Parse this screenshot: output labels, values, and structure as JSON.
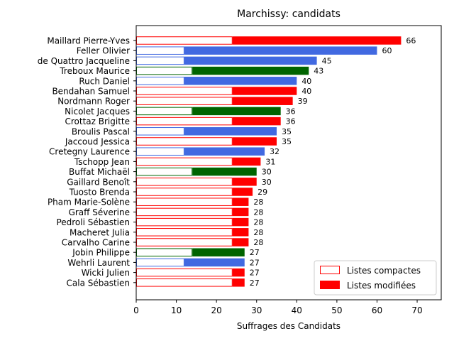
{
  "chart_data": {
    "type": "bar",
    "orientation": "horizontal",
    "title": "Marchissy: candidats",
    "xlabel": "Suffrages des Candidats",
    "ylabel": "",
    "xlim": [
      0,
      76
    ],
    "xticks": [
      0,
      10,
      20,
      30,
      40,
      50,
      60,
      70
    ],
    "grid": false,
    "legend_position": "bottom-right",
    "legend": [
      {
        "label": "Listes compactes",
        "style": "outline",
        "color": "#ff0000"
      },
      {
        "label": "Listes modifiées",
        "style": "filled",
        "color": "#ff0000"
      }
    ],
    "colors": {
      "red": "#ff0000",
      "blue": "#4169e1",
      "green": "#006400"
    },
    "candidates": [
      {
        "name": "Maillard Pierre-Yves",
        "total": 66,
        "compact": 24,
        "color": "red"
      },
      {
        "name": "Feller Olivier",
        "total": 60,
        "compact": 12,
        "color": "blue"
      },
      {
        "name": "de Quattro Jacqueline",
        "total": 45,
        "compact": 12,
        "color": "blue"
      },
      {
        "name": "Treboux Maurice",
        "total": 43,
        "compact": 14,
        "color": "green"
      },
      {
        "name": "Ruch Daniel",
        "total": 40,
        "compact": 12,
        "color": "blue"
      },
      {
        "name": "Bendahan Samuel",
        "total": 40,
        "compact": 24,
        "color": "red"
      },
      {
        "name": "Nordmann Roger",
        "total": 39,
        "compact": 24,
        "color": "red"
      },
      {
        "name": "Nicolet Jacques",
        "total": 36,
        "compact": 14,
        "color": "green"
      },
      {
        "name": "Crottaz Brigitte",
        "total": 36,
        "compact": 24,
        "color": "red"
      },
      {
        "name": "Broulis Pascal",
        "total": 35,
        "compact": 12,
        "color": "blue"
      },
      {
        "name": "Jaccoud Jessica",
        "total": 35,
        "compact": 24,
        "color": "red"
      },
      {
        "name": "Cretegny Laurence",
        "total": 32,
        "compact": 12,
        "color": "blue"
      },
      {
        "name": "Tschopp Jean",
        "total": 31,
        "compact": 24,
        "color": "red"
      },
      {
        "name": "Buffat Michaël",
        "total": 30,
        "compact": 14,
        "color": "green"
      },
      {
        "name": "Gaillard Benoît",
        "total": 30,
        "compact": 24,
        "color": "red"
      },
      {
        "name": "Tuosto Brenda",
        "total": 29,
        "compact": 24,
        "color": "red"
      },
      {
        "name": "Pham Marie-Solène",
        "total": 28,
        "compact": 24,
        "color": "red"
      },
      {
        "name": "Graff Séverine",
        "total": 28,
        "compact": 24,
        "color": "red"
      },
      {
        "name": "Pedroli Sébastien",
        "total": 28,
        "compact": 24,
        "color": "red"
      },
      {
        "name": "Macheret Julia",
        "total": 28,
        "compact": 24,
        "color": "red"
      },
      {
        "name": "Carvalho Carine",
        "total": 28,
        "compact": 24,
        "color": "red"
      },
      {
        "name": "Jobin Philippe",
        "total": 27,
        "compact": 14,
        "color": "green"
      },
      {
        "name": "Wehrli Laurent",
        "total": 27,
        "compact": 12,
        "color": "blue"
      },
      {
        "name": "Wicki Julien",
        "total": 27,
        "compact": 24,
        "color": "red"
      },
      {
        "name": "Cala Sébastien",
        "total": 27,
        "compact": 24,
        "color": "red"
      }
    ]
  }
}
